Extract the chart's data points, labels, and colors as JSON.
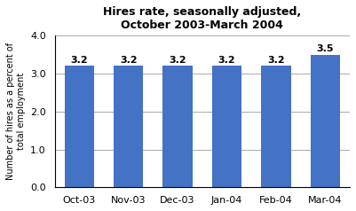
{
  "categories": [
    "Oct-03",
    "Nov-03",
    "Dec-03",
    "Jan-04",
    "Feb-04",
    "Mar-04"
  ],
  "values": [
    3.2,
    3.2,
    3.2,
    3.2,
    3.2,
    3.5
  ],
  "bar_color": "#4472C4",
  "title_line1": "Hires rate, seasonally adjusted,",
  "title_line2": "October 2003-March 2004",
  "ylabel": "Number of hires as a percent of\ntotal employment",
  "ylim": [
    0.0,
    4.0
  ],
  "yticks": [
    0.0,
    1.0,
    2.0,
    3.0,
    4.0
  ],
  "label_fontsize": 8,
  "title_fontsize": 9,
  "ylabel_fontsize": 7,
  "xlabel_fontsize": 8,
  "bar_width": 0.6,
  "background_color": "#ffffff",
  "grid_color": "#aaaaaa"
}
